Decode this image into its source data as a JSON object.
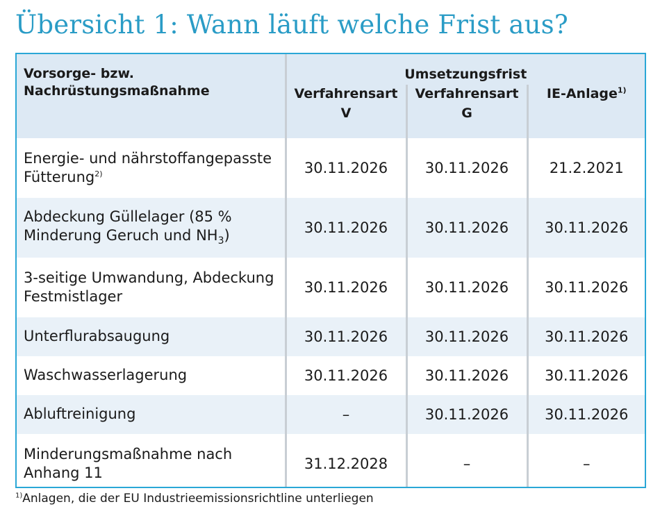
{
  "title": "Übersicht 1: Wann läuft welche Frist aus?",
  "table": {
    "header_left_line1": "Vorsorge- bzw.",
    "header_left_line2": "Nachrüstungsmaßnahme",
    "group_header": "Umsetzungsfrist",
    "col_v": "Verfahrensart V",
    "col_g": "Verfahrensart G",
    "col_ie": "IE-Anlage",
    "col_ie_sup": "1)",
    "rows": [
      {
        "label": "Energie- und nährstoffangepasste Fütterung",
        "label_sup": "2)",
        "v": "30.11.2026",
        "g": "30.11.2026",
        "ie": "21.2.2021"
      },
      {
        "label_a": "Abdeckung Güllelager (85 % Minderung Geruch und NH",
        "label_sub": "3",
        "label_b": ")",
        "v": "30.11.2026",
        "g": "30.11.2026",
        "ie": "30.11.2026"
      },
      {
        "label": "3-seitige Umwandung, Abdeckung Festmistlager",
        "v": "30.11.2026",
        "g": "30.11.2026",
        "ie": "30.11.2026"
      },
      {
        "label": "Unterflurabsaugung",
        "v": "30.11.2026",
        "g": "30.11.2026",
        "ie": "30.11.2026"
      },
      {
        "label": "Waschwasserlagerung",
        "v": "30.11.2026",
        "g": "30.11.2026",
        "ie": "30.11.2026"
      },
      {
        "label": "Abluftreinigung",
        "v": "–",
        "g": "30.11.2026",
        "ie": "30.11.2026"
      },
      {
        "label": "Minderungsmaßnahme nach Anhang 11",
        "v": "31.12.2028",
        "g": "–",
        "ie": "–"
      }
    ]
  },
  "footnote": {
    "marker": "1)",
    "text": "Anlagen, die der EU Industrieemissionsrichtline unterliegen"
  },
  "colors": {
    "title": "#2a9cc6",
    "border": "#2aa7d6",
    "header_bg": "#dde9f4",
    "alt_row_bg": "#e9f1f8"
  }
}
